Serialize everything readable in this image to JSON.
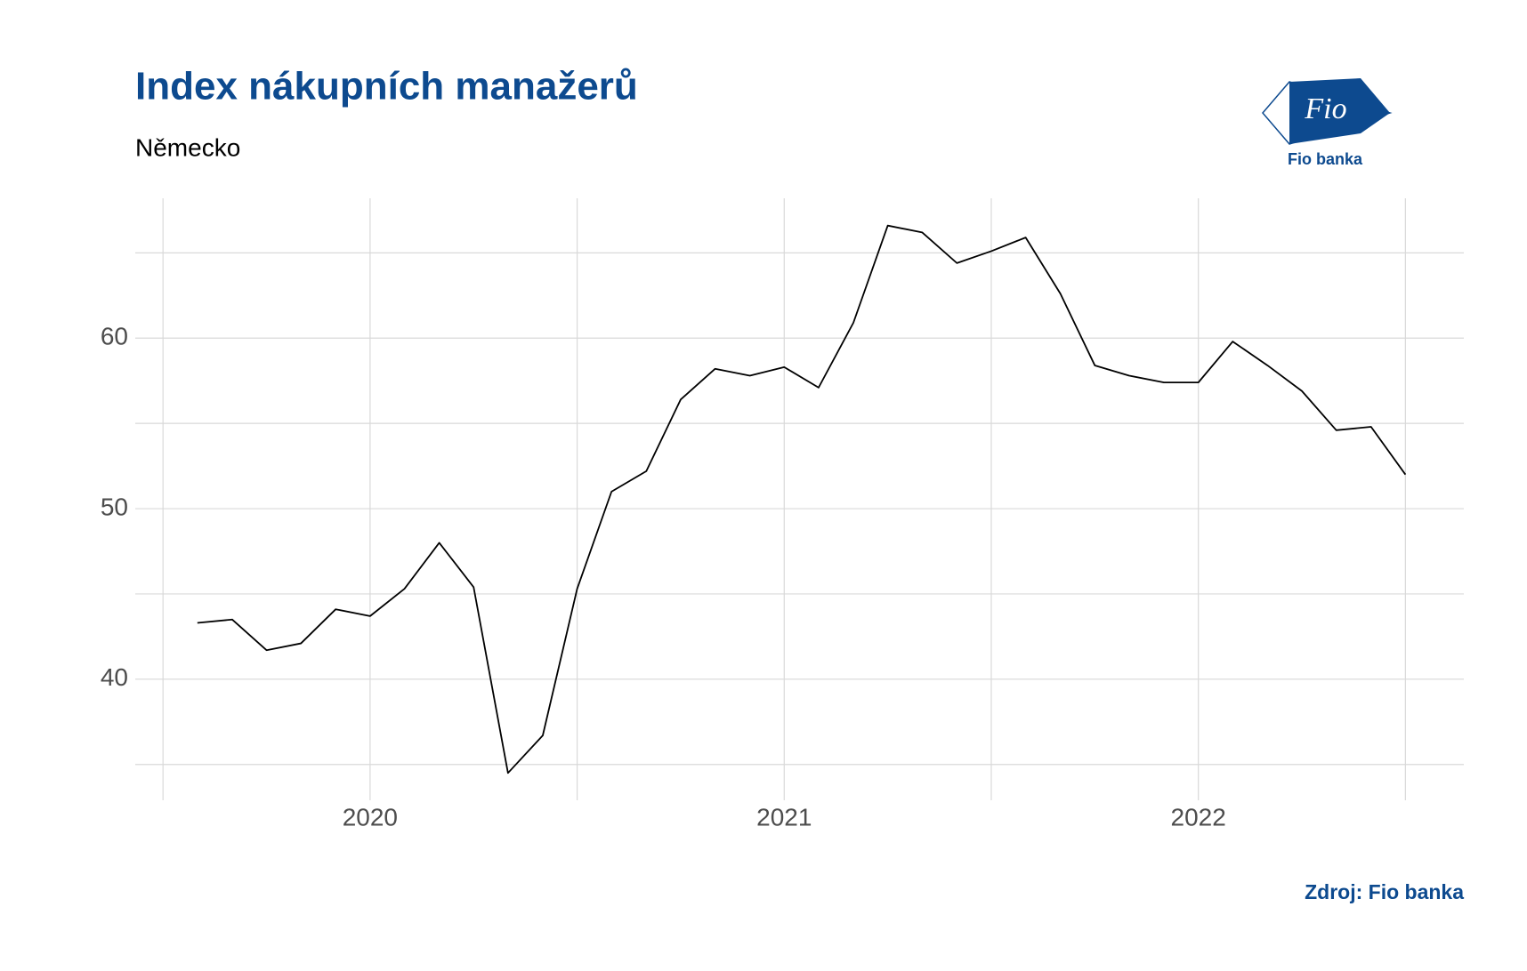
{
  "chart_data": {
    "type": "line",
    "title": "Index nákupních manažerů",
    "subtitle": "Německo",
    "x": [
      2019.583,
      2019.667,
      2019.75,
      2019.833,
      2019.917,
      2020.0,
      2020.083,
      2020.167,
      2020.25,
      2020.333,
      2020.417,
      2020.5,
      2020.583,
      2020.667,
      2020.75,
      2020.833,
      2020.917,
      2021.0,
      2021.083,
      2021.167,
      2021.25,
      2021.333,
      2021.417,
      2021.5,
      2021.583,
      2021.667,
      2021.75,
      2021.833,
      2021.917,
      2022.0,
      2022.083,
      2022.167,
      2022.25,
      2022.333,
      2022.417,
      2022.5
    ],
    "series": [
      {
        "color": "#000000",
        "values": [
          43.3,
          43.5,
          41.7,
          42.1,
          44.1,
          43.7,
          45.3,
          48.0,
          45.4,
          34.5,
          36.7,
          45.3,
          51.0,
          52.2,
          56.4,
          58.2,
          57.8,
          58.3,
          57.1,
          60.9,
          66.6,
          66.2,
          64.4,
          65.1,
          65.9,
          62.6,
          58.4,
          57.8,
          57.4,
          57.4,
          59.8,
          58.4,
          56.9,
          54.6,
          54.8,
          52.0
        ]
      }
    ],
    "xlim": [
      2019.433,
      2022.641
    ],
    "ylim": [
      32.9,
      68.2
    ],
    "xticks": [
      2020,
      2021,
      2022
    ],
    "yticks": [
      40,
      50,
      60
    ],
    "xminor": [
      2019.5,
      2020.5,
      2021.5,
      2022.5
    ],
    "yminor": [
      35,
      45,
      55,
      65
    ],
    "grid": true,
    "source": "Zdroj: Fio banka",
    "logo": {
      "mark": "Fio",
      "name": "Fio banka"
    }
  }
}
